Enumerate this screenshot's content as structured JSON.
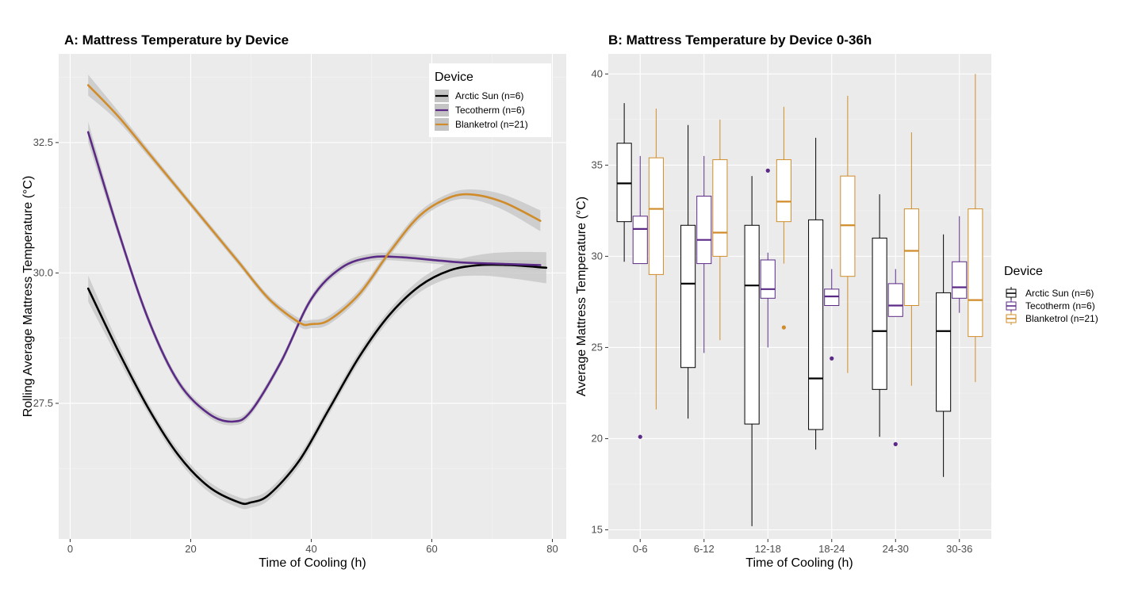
{
  "colors": {
    "panel_bg": "#ebebeb",
    "grid_major": "#ffffff",
    "grid_minor": "#f5f5f5",
    "ribbon": "#c4c4c4",
    "Arctic Sun (n=6)": "#000000",
    "Tecotherm (n=6)": "#5b2a86",
    "Blanketrol (n=21)": "#d08c2a"
  },
  "chart_data": [
    {
      "type": "line",
      "title": "A: Mattress Temperature by Device",
      "xlabel": "Time of Cooling (h)",
      "ylabel": "Rolling Average Mattress Temperature (°C)",
      "xlim": [
        -1.9,
        82.3
      ],
      "ylim": [
        24.9,
        34.2
      ],
      "xticks": [
        0,
        20,
        40,
        60,
        80
      ],
      "yticks": [
        27.5,
        30.0,
        32.5
      ],
      "ytick_labels": [
        "27.5",
        "30.0",
        "32.5"
      ],
      "grid": true,
      "legend": {
        "title": "Device",
        "placement": "top-right"
      },
      "series": [
        {
          "name": "Arctic Sun (n=6)",
          "x": [
            3,
            8,
            13,
            18,
            23,
            28,
            30,
            33,
            38,
            43,
            48,
            53,
            58,
            63,
            68,
            73,
            79
          ],
          "y": [
            29.7,
            28.5,
            27.4,
            26.5,
            25.9,
            25.6,
            25.6,
            25.75,
            26.4,
            27.4,
            28.4,
            29.2,
            29.75,
            30.05,
            30.15,
            30.15,
            30.1
          ],
          "ci": [
            0.25,
            0.15,
            0.1,
            0.1,
            0.1,
            0.1,
            0.1,
            0.1,
            0.1,
            0.1,
            0.1,
            0.1,
            0.12,
            0.15,
            0.2,
            0.25,
            0.3
          ]
        },
        {
          "name": "Tecotherm (n=6)",
          "x": [
            3,
            8,
            13,
            18,
            23,
            27,
            30,
            35,
            40,
            45,
            50,
            55,
            60,
            65,
            70,
            78
          ],
          "y": [
            32.7,
            30.8,
            29.1,
            27.9,
            27.3,
            27.15,
            27.35,
            28.3,
            29.5,
            30.1,
            30.3,
            30.3,
            30.25,
            30.2,
            30.18,
            30.15
          ],
          "ci": [
            0.2,
            0.1,
            0.08,
            0.07,
            0.07,
            0.07,
            0.07,
            0.07,
            0.07,
            0.07,
            0.07,
            0.07,
            0.07,
            0.07,
            0.07,
            0.1
          ]
        },
        {
          "name": "Blanketrol (n=21)",
          "x": [
            3,
            8,
            13,
            18,
            23,
            28,
            33,
            38,
            40,
            43,
            48,
            53,
            58,
            63,
            67,
            72,
            78
          ],
          "y": [
            33.6,
            33.0,
            32.3,
            31.6,
            30.9,
            30.2,
            29.5,
            29.05,
            29.02,
            29.1,
            29.6,
            30.4,
            31.1,
            31.45,
            31.5,
            31.35,
            31.0
          ],
          "ci": [
            0.2,
            0.1,
            0.07,
            0.06,
            0.06,
            0.06,
            0.06,
            0.08,
            0.08,
            0.08,
            0.08,
            0.08,
            0.08,
            0.08,
            0.1,
            0.15,
            0.2
          ]
        }
      ]
    },
    {
      "type": "box",
      "title": "B: Mattress Temperature by Device 0-36h",
      "xlabel": "Time of Cooling (h)",
      "ylabel": "Average Mattress Temperature (°C)",
      "ylim": [
        14.5,
        41.1
      ],
      "yticks": [
        15,
        20,
        25,
        30,
        35,
        40
      ],
      "categories": [
        "0-6",
        "6-12",
        "12-18",
        "18-24",
        "24-30",
        "30-36"
      ],
      "grid": true,
      "legend": {
        "title": "Device",
        "placement": "right"
      },
      "series": [
        {
          "name": "Arctic Sun (n=6)",
          "boxes": [
            {
              "min": 29.7,
              "q1": 31.9,
              "median": 34.0,
              "q3": 36.2,
              "max": 38.4,
              "outliers": []
            },
            {
              "min": 21.1,
              "q1": 23.9,
              "median": 28.5,
              "q3": 31.7,
              "max": 37.2,
              "outliers": []
            },
            {
              "min": 15.2,
              "q1": 20.8,
              "median": 28.4,
              "q3": 31.7,
              "max": 34.4,
              "outliers": []
            },
            {
              "min": 19.4,
              "q1": 20.5,
              "median": 23.3,
              "q3": 32.0,
              "max": 36.5,
              "outliers": []
            },
            {
              "min": 20.1,
              "q1": 22.7,
              "median": 25.9,
              "q3": 31.0,
              "max": 33.4,
              "outliers": []
            },
            {
              "min": 17.9,
              "q1": 21.5,
              "median": 25.9,
              "q3": 28.0,
              "max": 31.2,
              "outliers": []
            }
          ]
        },
        {
          "name": "Tecotherm (n=6)",
          "boxes": [
            {
              "min": 29.6,
              "q1": 29.6,
              "median": 31.5,
              "q3": 32.2,
              "max": 35.5,
              "outliers": [
                20.1
              ]
            },
            {
              "min": 24.7,
              "q1": 29.6,
              "median": 30.9,
              "q3": 33.3,
              "max": 35.5,
              "outliers": []
            },
            {
              "min": 25.0,
              "q1": 27.7,
              "median": 28.2,
              "q3": 29.8,
              "max": 30.2,
              "outliers": [
                34.7
              ]
            },
            {
              "min": 27.3,
              "q1": 27.3,
              "median": 27.8,
              "q3": 28.2,
              "max": 29.3,
              "outliers": [
                24.4
              ]
            },
            {
              "min": 26.7,
              "q1": 26.7,
              "median": 27.3,
              "q3": 28.5,
              "max": 29.3,
              "outliers": [
                19.7
              ]
            },
            {
              "min": 26.9,
              "q1": 27.7,
              "median": 28.3,
              "q3": 29.7,
              "max": 32.2,
              "outliers": []
            }
          ]
        },
        {
          "name": "Blanketrol (n=21)",
          "boxes": [
            {
              "min": 21.6,
              "q1": 29.0,
              "median": 32.6,
              "q3": 35.4,
              "max": 38.1,
              "outliers": []
            },
            {
              "min": 25.4,
              "q1": 30.0,
              "median": 31.3,
              "q3": 35.3,
              "max": 37.5,
              "outliers": []
            },
            {
              "min": 29.6,
              "q1": 31.9,
              "median": 33.0,
              "q3": 35.3,
              "max": 38.2,
              "outliers": [
                26.1
              ]
            },
            {
              "min": 23.6,
              "q1": 28.9,
              "median": 31.7,
              "q3": 34.4,
              "max": 38.8,
              "outliers": []
            },
            {
              "min": 22.9,
              "q1": 27.3,
              "median": 30.3,
              "q3": 32.6,
              "max": 36.8,
              "outliers": []
            },
            {
              "min": 23.1,
              "q1": 25.6,
              "median": 27.6,
              "q3": 32.6,
              "max": 40.0,
              "outliers": []
            }
          ]
        }
      ]
    }
  ]
}
